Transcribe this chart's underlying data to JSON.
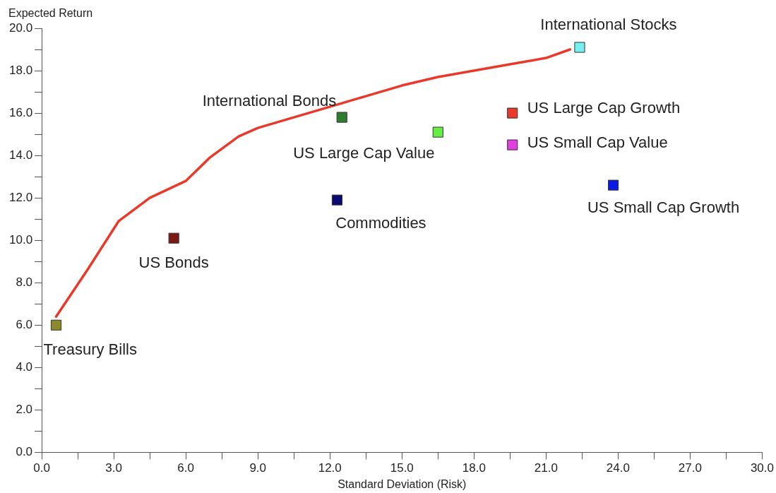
{
  "chart_data": {
    "type": "scatter",
    "xlabel": "Standard Deviation (Risk)",
    "ylabel": "Expected Return",
    "marker": "square",
    "grid": false,
    "legend": false,
    "xlim": [
      0,
      30
    ],
    "ylim": [
      0,
      20
    ],
    "xticks": [
      {
        "value": 0,
        "label": "0.0"
      },
      {
        "value": 1.5,
        "label": null
      },
      {
        "value": 3,
        "label": "3.0"
      },
      {
        "value": 4.5,
        "label": null
      },
      {
        "value": 6,
        "label": "6.0"
      },
      {
        "value": 7.5,
        "label": null
      },
      {
        "value": 9,
        "label": "9.0"
      },
      {
        "value": 10.5,
        "label": null
      },
      {
        "value": 12,
        "label": "12.0"
      },
      {
        "value": 13.5,
        "label": null
      },
      {
        "value": 15,
        "label": "15.0"
      },
      {
        "value": 16.5,
        "label": null
      },
      {
        "value": 18,
        "label": "18.0"
      },
      {
        "value": 19.5,
        "label": null
      },
      {
        "value": 21,
        "label": "21.0"
      },
      {
        "value": 22.5,
        "label": null
      },
      {
        "value": 24,
        "label": "24.0"
      },
      {
        "value": 25.5,
        "label": null
      },
      {
        "value": 27,
        "label": "27.0"
      },
      {
        "value": 28.5,
        "label": null
      },
      {
        "value": 30,
        "label": "30.0"
      }
    ],
    "yticks": [
      {
        "value": 0,
        "label": "0.0"
      },
      {
        "value": 1,
        "label": null
      },
      {
        "value": 2,
        "label": "2.0"
      },
      {
        "value": 3,
        "label": null
      },
      {
        "value": 4,
        "label": "4.0"
      },
      {
        "value": 5,
        "label": null
      },
      {
        "value": 6,
        "label": "6.0"
      },
      {
        "value": 7,
        "label": null
      },
      {
        "value": 8,
        "label": "8.0"
      },
      {
        "value": 9,
        "label": null
      },
      {
        "value": 10,
        "label": "10.0"
      },
      {
        "value": 11,
        "label": null
      },
      {
        "value": 12,
        "label": "12.0"
      },
      {
        "value": 13,
        "label": null
      },
      {
        "value": 14,
        "label": "14.0"
      },
      {
        "value": 15,
        "label": null
      },
      {
        "value": 16,
        "label": "16.0"
      },
      {
        "value": 17,
        "label": null
      },
      {
        "value": 18,
        "label": "18.0"
      },
      {
        "value": 19,
        "label": null
      },
      {
        "value": 20,
        "label": "20.0"
      }
    ],
    "series": [
      {
        "type": "line",
        "color": "#e8392a",
        "marker": "none",
        "x": [
          0.6,
          1.9,
          3.2,
          4.5,
          6,
          7,
          8.2,
          9,
          10.5,
          12,
          13.5,
          15,
          16.5,
          18,
          19.5,
          21,
          22
        ],
        "values": [
          6.4,
          8.6,
          10.9,
          12.0,
          12.8,
          13.9,
          14.9,
          15.3,
          15.8,
          16.3,
          16.8,
          17.3,
          17.7,
          18.0,
          18.3,
          18.6,
          19.0
        ]
      },
      {
        "name": "Treasury Bills",
        "color": "#8b8a2a",
        "x": [
          0.6
        ],
        "values": [
          6.0
        ]
      },
      {
        "name": "US Bonds",
        "color": "#7a1a10",
        "x": [
          5.5
        ],
        "values": [
          10.1
        ]
      },
      {
        "name": "Commodities",
        "color": "#0a0a70",
        "x": [
          12.3
        ],
        "values": [
          11.9
        ]
      },
      {
        "name": "International Bonds",
        "color": "#2e7d2e",
        "x": [
          12.5
        ],
        "values": [
          15.8
        ]
      },
      {
        "name": "US Large Cap Value",
        "color": "#66ee44",
        "x": [
          16.5
        ],
        "values": [
          15.1
        ]
      },
      {
        "name": "US Large Cap Growth",
        "color": "#e8392a",
        "x": [
          19.6
        ],
        "values": [
          16.0
        ]
      },
      {
        "name": "US Small Cap Value",
        "color": "#e040e0",
        "x": [
          19.6
        ],
        "values": [
          14.5
        ]
      },
      {
        "name": "US Small Cap Growth",
        "color": "#0a1ae0",
        "x": [
          23.8
        ],
        "values": [
          12.6
        ]
      },
      {
        "name": "International Stocks",
        "color": "#77eef0",
        "x": [
          22.4
        ],
        "values": [
          19.1
        ]
      }
    ]
  }
}
